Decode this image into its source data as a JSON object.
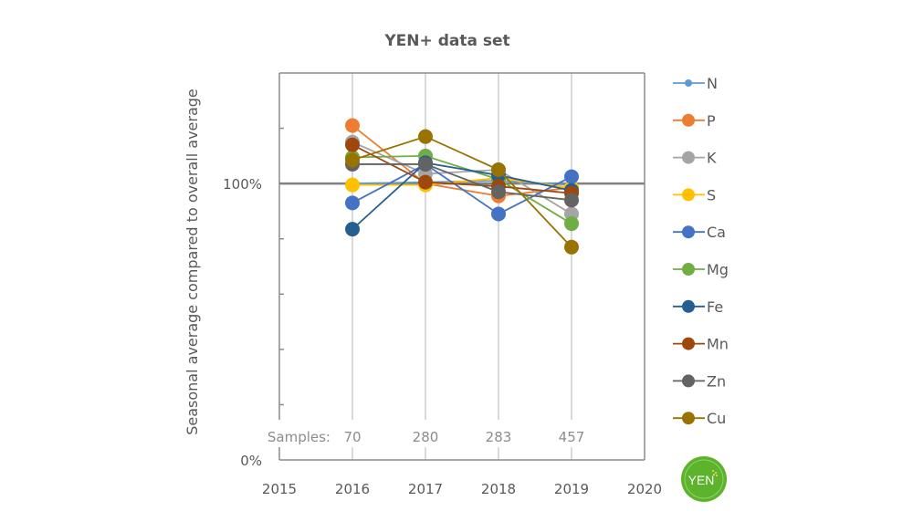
{
  "chart_data": {
    "type": "line",
    "title": "YEN+ data set",
    "xlabel": "",
    "ylabel": "Seasonal average compared to overall average",
    "x_ticks": [
      "2015",
      "2016",
      "2017",
      "2018",
      "2019",
      "2020"
    ],
    "y_ticks": [
      "0%",
      "100%"
    ],
    "xlim": [
      2015,
      2020
    ],
    "ylim": [
      0,
      140
    ],
    "y_minor_ticks": [
      20,
      40,
      60,
      80,
      120
    ],
    "reference_line": 100,
    "grid": "vertical",
    "legend_position": "right",
    "x": [
      2016,
      2017,
      2018,
      2019
    ],
    "samples_label": "Samples:",
    "samples": [
      "70",
      "280",
      "283",
      "457"
    ],
    "series": [
      {
        "name": "N",
        "color": "#5B9BD5",
        "small_marker": true,
        "values": [
          100,
          100.5,
          101,
          99.5
        ]
      },
      {
        "name": "P",
        "color": "#ED7D31",
        "values": [
          121,
          100,
          95.5,
          98.5
        ]
      },
      {
        "name": "K",
        "color": "#A5A5A5",
        "values": [
          115,
          103.5,
          105,
          89
        ]
      },
      {
        "name": "S",
        "color": "#FFC000",
        "values": [
          99.5,
          99.5,
          102,
          98.5
        ]
      },
      {
        "name": "Ca",
        "color": "#4472C4",
        "values": [
          93,
          107,
          89,
          102.5
        ]
      },
      {
        "name": "Mg",
        "color": "#70AD47",
        "values": [
          109.5,
          110,
          101.5,
          85.5
        ]
      },
      {
        "name": "Fe",
        "color": "#255E91",
        "values": [
          83.5,
          107.5,
          103,
          97.5
        ]
      },
      {
        "name": "Mn",
        "color": "#9E480E",
        "values": [
          114,
          100.5,
          99,
          96.5
        ]
      },
      {
        "name": "Zn",
        "color": "#636363",
        "values": [
          107,
          107,
          97,
          94
        ]
      },
      {
        "name": "Cu",
        "color": "#997300",
        "values": [
          108.5,
          117,
          105,
          77
        ]
      }
    ]
  },
  "logo": {
    "text": "YEN",
    "color": "#5DB32C"
  }
}
